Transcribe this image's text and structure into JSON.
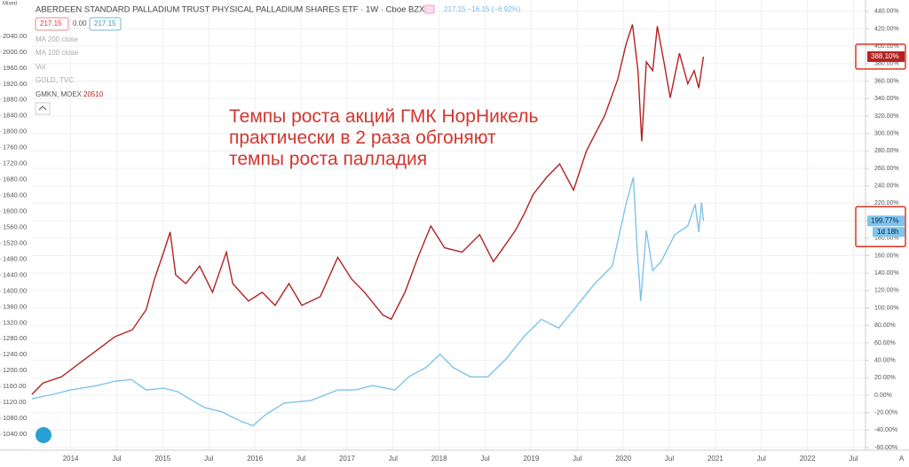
{
  "chart_data": {
    "type": "line",
    "title": "ABERDEEN STANDARD PALLADIUM TRUST PHYSICAL PALLADIUM SHARES ETF · 1W · Cboe BZX",
    "scale_mode": "Mixed",
    "ohlc_labels": [
      "217.15",
      "0.00",
      "217.15"
    ],
    "quote": "217.15 −16.15 (−6.92%)",
    "indicators": [
      "MA 200 close",
      "MA 100 close",
      "Vol",
      "GOLD, TVC"
    ],
    "annotation": [
      "Темпы роста акций ГМК НорНикель",
      "практически в 2 раза обгоняют",
      "темпы роста палладия"
    ],
    "auto_label": "A",
    "grid": true,
    "xlim": [
      2013.57,
      2022.63
    ],
    "xticks": [
      {
        "value": 2014,
        "label": "2014"
      },
      {
        "value": 2014.5,
        "label": "Jul"
      },
      {
        "value": 2015,
        "label": "2015"
      },
      {
        "value": 2015.5,
        "label": "Jul"
      },
      {
        "value": 2016,
        "label": "2016"
      },
      {
        "value": 2016.5,
        "label": "Jul"
      },
      {
        "value": 2017,
        "label": "2017"
      },
      {
        "value": 2017.5,
        "label": "Jul"
      },
      {
        "value": 2018,
        "label": "2018"
      },
      {
        "value": 2018.5,
        "label": "Jul"
      },
      {
        "value": 2019,
        "label": "2019"
      },
      {
        "value": 2019.5,
        "label": "Jul"
      },
      {
        "value": 2020,
        "label": "2020"
      },
      {
        "value": 2020.5,
        "label": "Jul"
      },
      {
        "value": 2021,
        "label": "2021"
      },
      {
        "value": 2021.5,
        "label": "Jul"
      },
      {
        "value": 2022,
        "label": "2022"
      },
      {
        "value": 2022.5,
        "label": "Jul"
      }
    ],
    "ylim": [
      1000,
      2131
    ],
    "yticks": [
      {
        "value": 1040,
        "label": "1040.00"
      },
      {
        "value": 1080,
        "label": "1080.00"
      },
      {
        "value": 1120,
        "label": "1120.00"
      },
      {
        "value": 1160,
        "label": "1160.00"
      },
      {
        "value": 1200,
        "label": "1200.00"
      },
      {
        "value": 1240,
        "label": "1240.00"
      },
      {
        "value": 1280,
        "label": "1280.00"
      },
      {
        "value": 1320,
        "label": "1320.00"
      },
      {
        "value": 1360,
        "label": "1360.00"
      },
      {
        "value": 1400,
        "label": "1400.00"
      },
      {
        "value": 1440,
        "label": "1440.00"
      },
      {
        "value": 1480,
        "label": "1480.00"
      },
      {
        "value": 1520,
        "label": "1520.00"
      },
      {
        "value": 1560,
        "label": "1560.00"
      },
      {
        "value": 1600,
        "label": "1600.00"
      },
      {
        "value": 1640,
        "label": "1640.00"
      },
      {
        "value": 1680,
        "label": "1680.00"
      },
      {
        "value": 1720,
        "label": "1720.00"
      },
      {
        "value": 1760,
        "label": "1760.00"
      },
      {
        "value": 1800,
        "label": "1800.00"
      },
      {
        "value": 1840,
        "label": "1840.00"
      },
      {
        "value": 1880,
        "label": "1880.00"
      },
      {
        "value": 1920,
        "label": "1920.00"
      },
      {
        "value": 1960,
        "label": "1960.00"
      },
      {
        "value": 2000,
        "label": "2000.00"
      },
      {
        "value": 2040,
        "label": "2040.00"
      }
    ],
    "y2lim": [
      -63,
      453
    ],
    "y2ticks": [
      {
        "value": -60,
        "label": "-60.00%"
      },
      {
        "value": -40,
        "label": "-40.00%"
      },
      {
        "value": -20,
        "label": "-20.00%"
      },
      {
        "value": 0,
        "label": "0.00%"
      },
      {
        "value": 20,
        "label": "20.00%"
      },
      {
        "value": 40,
        "label": "40.00%"
      },
      {
        "value": 60,
        "label": "60.00%"
      },
      {
        "value": 80,
        "label": "80.00%"
      },
      {
        "value": 100,
        "label": "100.00%"
      },
      {
        "value": 120,
        "label": "120.00%"
      },
      {
        "value": 140,
        "label": "140.00%"
      },
      {
        "value": 160,
        "label": "160.00%"
      },
      {
        "value": 180,
        "label": "180.00%"
      },
      {
        "value": 200,
        "label": "200.00%"
      },
      {
        "value": 220,
        "label": "220.00%"
      },
      {
        "value": 240,
        "label": "240.00%"
      },
      {
        "value": 260,
        "label": "260.00%"
      },
      {
        "value": 280,
        "label": "280.00%"
      },
      {
        "value": 300,
        "label": "300.00%"
      },
      {
        "value": 320,
        "label": "320.00%"
      },
      {
        "value": 340,
        "label": "340.00%"
      },
      {
        "value": 360,
        "label": "360.00%"
      },
      {
        "value": 380,
        "label": "380.00%"
      },
      {
        "value": 400,
        "label": "400.00%"
      },
      {
        "value": 420,
        "label": "420.00%"
      },
      {
        "value": 440,
        "label": "440.00%"
      }
    ],
    "series": [
      {
        "name": "GMKN, MOEX",
        "legend_value": "20510",
        "color": "#b22222",
        "axis": "y2",
        "last_label": "388.10%",
        "x": [
          2013.58,
          2013.7,
          2013.9,
          2014.1,
          2014.29,
          2014.48,
          2014.67,
          2014.82,
          2014.91,
          2015.01,
          2015.08,
          2015.14,
          2015.25,
          2015.4,
          2015.54,
          2015.69,
          2015.76,
          2015.93,
          2016.08,
          2016.22,
          2016.37,
          2016.51,
          2016.71,
          2016.9,
          2017.05,
          2017.19,
          2017.39,
          2017.48,
          2017.63,
          2017.77,
          2017.91,
          2018.06,
          2018.25,
          2018.44,
          2018.59,
          2018.73,
          2018.83,
          2018.93,
          2019.02,
          2019.17,
          2019.31,
          2019.46,
          2019.6,
          2019.8,
          2019.94,
          2020.03,
          2020.1,
          2020.16,
          2020.2,
          2020.25,
          2020.32,
          2020.37,
          2020.45,
          2020.51,
          2020.61,
          2020.7,
          2020.77,
          2020.82,
          2020.87
        ],
        "values": [
          1,
          14,
          21,
          37,
          52,
          67,
          75,
          98,
          133,
          164,
          187,
          138,
          128,
          148,
          118,
          164,
          128,
          108,
          118,
          103,
          128,
          103,
          113,
          158,
          133,
          118,
          92,
          87,
          118,
          158,
          194,
          169,
          164,
          184,
          153,
          174,
          189,
          209,
          230,
          250,
          265,
          235,
          280,
          321,
          362,
          402,
          425,
          372,
          291,
          382,
          372,
          423,
          377,
          341,
          392,
          357,
          372,
          352,
          388.1
        ]
      },
      {
        "color": "#7fc4ea",
        "axis": "y2",
        "last_label": "199.77%",
        "countdown": "1d 18h",
        "x": [
          2013.58,
          2013.81,
          2014,
          2014.29,
          2014.48,
          2014.66,
          2014.82,
          2015.01,
          2015.16,
          2015.45,
          2015.64,
          2015.83,
          2015.98,
          2016.12,
          2016.32,
          2016.61,
          2016.9,
          2017.09,
          2017.28,
          2017.52,
          2017.67,
          2017.86,
          2018.01,
          2018.15,
          2018.34,
          2018.53,
          2018.73,
          2018.92,
          2019.11,
          2019.3,
          2019.5,
          2019.69,
          2019.88,
          2020.03,
          2020.11,
          2020.15,
          2020.19,
          2020.25,
          2020.32,
          2020.41,
          2020.56,
          2020.7,
          2020.78,
          2020.82,
          2020.85,
          2020.87
        ],
        "values": [
          -4,
          1,
          6,
          11,
          16,
          18,
          6,
          8,
          4,
          -14,
          -19,
          -29,
          -35,
          -22,
          -9,
          -6,
          6,
          6,
          11,
          6,
          21,
          32,
          47,
          32,
          21,
          21,
          42,
          67,
          87,
          77,
          103,
          128,
          148,
          219,
          250,
          169,
          108,
          189,
          143,
          153,
          184,
          194,
          219,
          187,
          221,
          199.77
        ]
      }
    ]
  }
}
